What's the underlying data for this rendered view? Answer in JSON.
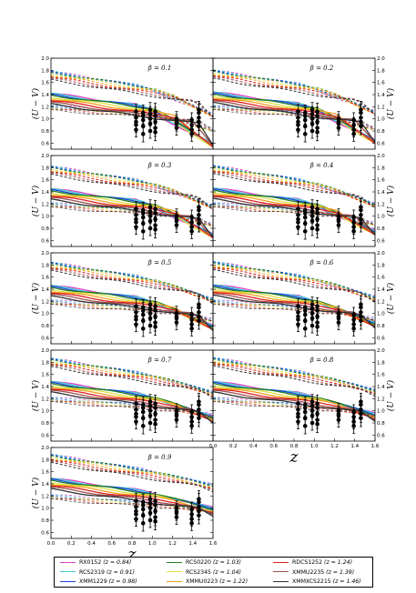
{
  "colors": {
    "RX0152": "#e040c8",
    "RCS2319": "#40d0d0",
    "XMM1229": "#2040e0",
    "RCS0220": "#208020",
    "RCS2345": "#e0e040",
    "XMMU0223": "#f0a020",
    "RDCS1252": "#e02020",
    "XMMU2235": "#a05050",
    "XMMXCS2215": "#303030"
  },
  "figure": {
    "x_axis_symbol": "z",
    "y_axis_label": "(U − V)"
  },
  "legend": {
    "items": [
      {
        "name": "RX0152",
        "z": "(z = 0.84)",
        "color": "#e040c8"
      },
      {
        "name": "RCS0220",
        "z": "(z = 1.03)",
        "color": "#208020"
      },
      {
        "name": "RDCS1252",
        "z": "(z = 1.24)",
        "color": "#e02020"
      },
      {
        "name": "RCS2319",
        "z": "(z = 0.91)",
        "color": "#40d0d0"
      },
      {
        "name": "RCS2345",
        "z": "(z = 1.04)",
        "color": "#e0e040"
      },
      {
        "name": "XMMU2235",
        "z": "(z = 1.39)",
        "color": "#a05050"
      },
      {
        "name": "XMM1229",
        "z": "(z = 0.98)",
        "color": "#2040e0"
      },
      {
        "name": "XMMU0223",
        "z": "(z = 1.22)",
        "color": "#f0a020"
      },
      {
        "name": "XMMXCS2215",
        "z": "(z = 1.46)",
        "color": "#303030"
      }
    ]
  },
  "chart_data": [
    {
      "type": "line",
      "panel_label": "β = 0.1",
      "xlim": [
        0,
        1.6
      ],
      "ylim": [
        0.5,
        2.0
      ],
      "xticks": [
        "0.0",
        "0.2",
        "0.4",
        "0.6",
        "0.8",
        "1.0",
        "1.2",
        "1.4",
        "1.6"
      ],
      "yticks": [
        "0.6",
        "0.8",
        "1.0",
        "1.2",
        "1.4",
        "1.6",
        "1.8",
        "2.0"
      ],
      "x_tick_labels_shown": false,
      "y_ticks_side": "left",
      "solid_start": 1.42,
      "dashed_start": 1.78,
      "drop": 0.55,
      "observations": [
        {
          "x": 0.84,
          "y": [
            1.12,
            0.95,
            0.82,
            1.02,
            0.9
          ],
          "err": 0.12
        },
        {
          "x": 0.91,
          "y": [
            1.05,
            0.88,
            0.75,
            0.98,
            1.1
          ],
          "err": 0.13
        },
        {
          "x": 0.98,
          "y": [
            1.08,
            0.92,
            1.0,
            0.8,
            1.15
          ],
          "err": 0.12
        },
        {
          "x": 1.03,
          "y": [
            0.95,
            1.05,
            0.85,
            1.12,
            0.78
          ],
          "err": 0.14
        },
        {
          "x": 1.24,
          "y": [
            0.92,
            1.0,
            0.85,
            0.95
          ],
          "err": 0.12
        },
        {
          "x": 1.39,
          "y": [
            0.9,
            0.82,
            0.98,
            0.75
          ],
          "err": 0.12
        },
        {
          "x": 1.46,
          "y": [
            1.1,
            0.95,
            1.02,
            0.88,
            1.15
          ],
          "err": 0.14
        }
      ]
    },
    {
      "type": "line",
      "panel_label": "β = 0.2",
      "xlim": [
        0,
        1.6
      ],
      "ylim": [
        0.5,
        2.0
      ],
      "xticks": [
        "0.0",
        "0.2",
        "0.4",
        "0.6",
        "0.8",
        "1.0",
        "1.2",
        "1.4",
        "1.6"
      ],
      "yticks": [
        "0.6",
        "0.8",
        "1.0",
        "1.2",
        "1.4",
        "1.6",
        "1.8",
        "2.0"
      ],
      "x_tick_labels_shown": false,
      "y_ticks_side": "right",
      "solid_start": 1.44,
      "dashed_start": 1.8,
      "drop": 0.5,
      "observations": [
        {
          "x": 0.84,
          "y": [
            1.12,
            0.95,
            0.82,
            1.02,
            0.9
          ],
          "err": 0.12
        },
        {
          "x": 0.91,
          "y": [
            1.05,
            0.88,
            0.75,
            0.98,
            1.1
          ],
          "err": 0.13
        },
        {
          "x": 0.98,
          "y": [
            1.08,
            0.92,
            1.0,
            0.8,
            1.15
          ],
          "err": 0.12
        },
        {
          "x": 1.03,
          "y": [
            0.95,
            1.05,
            0.85,
            1.12,
            0.78
          ],
          "err": 0.14
        },
        {
          "x": 1.24,
          "y": [
            0.92,
            1.0,
            0.85,
            0.95
          ],
          "err": 0.12
        },
        {
          "x": 1.39,
          "y": [
            0.9,
            0.82,
            0.98,
            0.75
          ],
          "err": 0.12
        },
        {
          "x": 1.46,
          "y": [
            1.1,
            0.95,
            1.02,
            0.88,
            1.15
          ],
          "err": 0.14
        }
      ]
    },
    {
      "type": "line",
      "panel_label": "β = 0.3",
      "xlim": [
        0,
        1.6
      ],
      "ylim": [
        0.5,
        2.0
      ],
      "xticks": [
        "0.0",
        "0.2",
        "0.4",
        "0.6",
        "0.8",
        "1.0",
        "1.2",
        "1.4",
        "1.6"
      ],
      "yticks": [
        "0.6",
        "0.8",
        "1.0",
        "1.2",
        "1.4",
        "1.6",
        "1.8",
        "2.0"
      ],
      "x_tick_labels_shown": false,
      "y_ticks_side": "left",
      "solid_start": 1.45,
      "dashed_start": 1.82,
      "drop": 0.45,
      "observations": [
        {
          "x": 0.84,
          "y": [
            1.12,
            0.95,
            0.82,
            1.02,
            0.9
          ],
          "err": 0.12
        },
        {
          "x": 0.91,
          "y": [
            1.05,
            0.88,
            0.75,
            0.98,
            1.1
          ],
          "err": 0.13
        },
        {
          "x": 0.98,
          "y": [
            1.08,
            0.92,
            1.0,
            0.8,
            1.15
          ],
          "err": 0.12
        },
        {
          "x": 1.03,
          "y": [
            0.95,
            1.05,
            0.85,
            1.12,
            0.78
          ],
          "err": 0.14
        },
        {
          "x": 1.24,
          "y": [
            0.92,
            1.0,
            0.85,
            0.95
          ],
          "err": 0.12
        },
        {
          "x": 1.39,
          "y": [
            0.9,
            0.82,
            0.98,
            0.75
          ],
          "err": 0.12
        },
        {
          "x": 1.46,
          "y": [
            1.1,
            0.95,
            1.02,
            0.88,
            1.15
          ],
          "err": 0.14
        }
      ]
    },
    {
      "type": "line",
      "panel_label": "β = 0.4",
      "xlim": [
        0,
        1.6
      ],
      "ylim": [
        0.5,
        2.0
      ],
      "xticks": [
        "0.0",
        "0.2",
        "0.4",
        "0.6",
        "0.8",
        "1.0",
        "1.2",
        "1.4",
        "1.6"
      ],
      "yticks": [
        "0.6",
        "0.8",
        "1.0",
        "1.2",
        "1.4",
        "1.6",
        "1.8",
        "2.0"
      ],
      "x_tick_labels_shown": false,
      "y_ticks_side": "right",
      "solid_start": 1.46,
      "dashed_start": 1.83,
      "drop": 0.4,
      "observations": [
        {
          "x": 0.84,
          "y": [
            1.12,
            0.95,
            0.82,
            1.02,
            0.9
          ],
          "err": 0.12
        },
        {
          "x": 0.91,
          "y": [
            1.05,
            0.88,
            0.75,
            0.98,
            1.1
          ],
          "err": 0.13
        },
        {
          "x": 0.98,
          "y": [
            1.08,
            0.92,
            1.0,
            0.8,
            1.15
          ],
          "err": 0.12
        },
        {
          "x": 1.03,
          "y": [
            0.95,
            1.05,
            0.85,
            1.12,
            0.78
          ],
          "err": 0.14
        },
        {
          "x": 1.24,
          "y": [
            0.92,
            1.0,
            0.85,
            0.95
          ],
          "err": 0.12
        },
        {
          "x": 1.39,
          "y": [
            0.9,
            0.82,
            0.98,
            0.75
          ],
          "err": 0.12
        },
        {
          "x": 1.46,
          "y": [
            1.1,
            0.95,
            1.02,
            0.88,
            1.15
          ],
          "err": 0.14
        }
      ]
    },
    {
      "type": "line",
      "panel_label": "β = 0.5",
      "xlim": [
        0,
        1.6
      ],
      "ylim": [
        0.5,
        2.0
      ],
      "xticks": [
        "0.0",
        "0.2",
        "0.4",
        "0.6",
        "0.8",
        "1.0",
        "1.2",
        "1.4",
        "1.6"
      ],
      "yticks": [
        "0.6",
        "0.8",
        "1.0",
        "1.2",
        "1.4",
        "1.6",
        "1.8",
        "2.0"
      ],
      "x_tick_labels_shown": false,
      "y_ticks_side": "left",
      "solid_start": 1.46,
      "dashed_start": 1.84,
      "drop": 0.35,
      "observations": [
        {
          "x": 0.84,
          "y": [
            1.12,
            0.95,
            0.82,
            1.02,
            0.9
          ],
          "err": 0.12
        },
        {
          "x": 0.91,
          "y": [
            1.05,
            0.88,
            0.75,
            0.98,
            1.1
          ],
          "err": 0.13
        },
        {
          "x": 0.98,
          "y": [
            1.08,
            0.92,
            1.0,
            0.8,
            1.15
          ],
          "err": 0.12
        },
        {
          "x": 1.03,
          "y": [
            0.95,
            1.05,
            0.85,
            1.12,
            0.78
          ],
          "err": 0.14
        },
        {
          "x": 1.24,
          "y": [
            0.92,
            1.0,
            0.85,
            0.95
          ],
          "err": 0.12
        },
        {
          "x": 1.39,
          "y": [
            0.9,
            0.82,
            0.98,
            0.75
          ],
          "err": 0.12
        },
        {
          "x": 1.46,
          "y": [
            1.1,
            0.95,
            1.02,
            0.88,
            1.15
          ],
          "err": 0.14
        }
      ]
    },
    {
      "type": "line",
      "panel_label": "β = 0.6",
      "xlim": [
        0,
        1.6
      ],
      "ylim": [
        0.5,
        2.0
      ],
      "xticks": [
        "0.0",
        "0.2",
        "0.4",
        "0.6",
        "0.8",
        "1.0",
        "1.2",
        "1.4",
        "1.6"
      ],
      "yticks": [
        "0.6",
        "0.8",
        "1.0",
        "1.2",
        "1.4",
        "1.6",
        "1.8",
        "2.0"
      ],
      "x_tick_labels_shown": false,
      "y_ticks_side": "right",
      "solid_start": 1.47,
      "dashed_start": 1.85,
      "drop": 0.3,
      "observations": [
        {
          "x": 0.84,
          "y": [
            1.12,
            0.95,
            0.82,
            1.02,
            0.9
          ],
          "err": 0.12
        },
        {
          "x": 0.91,
          "y": [
            1.05,
            0.88,
            0.75,
            0.98,
            1.1
          ],
          "err": 0.13
        },
        {
          "x": 0.98,
          "y": [
            1.08,
            0.92,
            1.0,
            0.8,
            1.15
          ],
          "err": 0.12
        },
        {
          "x": 1.03,
          "y": [
            0.95,
            1.05,
            0.85,
            1.12,
            0.78
          ],
          "err": 0.14
        },
        {
          "x": 1.24,
          "y": [
            0.92,
            1.0,
            0.85,
            0.95
          ],
          "err": 0.12
        },
        {
          "x": 1.39,
          "y": [
            0.9,
            0.82,
            0.98,
            0.75
          ],
          "err": 0.12
        },
        {
          "x": 1.46,
          "y": [
            1.1,
            0.95,
            1.02,
            0.88,
            1.15
          ],
          "err": 0.14
        }
      ]
    },
    {
      "type": "line",
      "panel_label": "β = 0.7",
      "xlim": [
        0,
        1.6
      ],
      "ylim": [
        0.5,
        2.0
      ],
      "xticks": [
        "0.0",
        "0.2",
        "0.4",
        "0.6",
        "0.8",
        "1.0",
        "1.2",
        "1.4",
        "1.6"
      ],
      "yticks": [
        "0.6",
        "0.8",
        "1.0",
        "1.2",
        "1.4",
        "1.6",
        "1.8",
        "2.0"
      ],
      "x_tick_labels_shown": false,
      "y_ticks_side": "left",
      "solid_start": 1.48,
      "dashed_start": 1.86,
      "drop": 0.25,
      "observations": [
        {
          "x": 0.84,
          "y": [
            1.12,
            0.95,
            0.82,
            1.02,
            0.9
          ],
          "err": 0.12
        },
        {
          "x": 0.91,
          "y": [
            1.05,
            0.88,
            0.75,
            0.98,
            1.1
          ],
          "err": 0.13
        },
        {
          "x": 0.98,
          "y": [
            1.08,
            0.92,
            1.0,
            0.8,
            1.15
          ],
          "err": 0.12
        },
        {
          "x": 1.03,
          "y": [
            0.95,
            1.05,
            0.85,
            1.12,
            0.78
          ],
          "err": 0.14
        },
        {
          "x": 1.24,
          "y": [
            0.92,
            1.0,
            0.85,
            0.95
          ],
          "err": 0.12
        },
        {
          "x": 1.39,
          "y": [
            0.9,
            0.82,
            0.98,
            0.75
          ],
          "err": 0.12
        },
        {
          "x": 1.46,
          "y": [
            1.1,
            0.95,
            1.02,
            0.88,
            1.15
          ],
          "err": 0.14
        }
      ]
    },
    {
      "type": "line",
      "panel_label": "β = 0.8",
      "xlim": [
        0,
        1.6
      ],
      "ylim": [
        0.5,
        2.0
      ],
      "xticks": [
        "0.0",
        "0.2",
        "0.4",
        "0.6",
        "0.8",
        "1.0",
        "1.2",
        "1.4",
        "1.6"
      ],
      "yticks": [
        "0.6",
        "0.8",
        "1.0",
        "1.2",
        "1.4",
        "1.6",
        "1.8",
        "2.0"
      ],
      "x_tick_labels_shown": true,
      "y_ticks_side": "right",
      "solid_start": 1.48,
      "dashed_start": 1.87,
      "drop": 0.2,
      "observations": [
        {
          "x": 0.84,
          "y": [
            1.12,
            0.95,
            0.82,
            1.02,
            0.9
          ],
          "err": 0.12
        },
        {
          "x": 0.91,
          "y": [
            1.05,
            0.88,
            0.75,
            0.98,
            1.1
          ],
          "err": 0.13
        },
        {
          "x": 0.98,
          "y": [
            1.08,
            0.92,
            1.0,
            0.8,
            1.15
          ],
          "err": 0.12
        },
        {
          "x": 1.03,
          "y": [
            0.95,
            1.05,
            0.85,
            1.12,
            0.78
          ],
          "err": 0.14
        },
        {
          "x": 1.24,
          "y": [
            0.92,
            1.0,
            0.85,
            0.95
          ],
          "err": 0.12
        },
        {
          "x": 1.39,
          "y": [
            0.9,
            0.82,
            0.98,
            0.75
          ],
          "err": 0.12
        },
        {
          "x": 1.46,
          "y": [
            1.1,
            0.95,
            1.02,
            0.88,
            1.15
          ],
          "err": 0.14
        }
      ]
    },
    {
      "type": "line",
      "panel_label": "β = 0.9",
      "xlim": [
        0,
        1.6
      ],
      "ylim": [
        0.5,
        2.0
      ],
      "xticks": [
        "0.0",
        "0.2",
        "0.4",
        "0.6",
        "0.8",
        "1.0",
        "1.2",
        "1.4",
        "1.6"
      ],
      "yticks": [
        "0.6",
        "0.8",
        "1.0",
        "1.2",
        "1.4",
        "1.6",
        "1.8",
        "2.0"
      ],
      "x_tick_labels_shown": true,
      "y_ticks_side": "left",
      "solid_start": 1.49,
      "dashed_start": 1.88,
      "drop": 0.15,
      "observations": [
        {
          "x": 0.84,
          "y": [
            1.12,
            0.95,
            0.82,
            1.02,
            0.9
          ],
          "err": 0.12
        },
        {
          "x": 0.91,
          "y": [
            1.05,
            0.88,
            0.75,
            0.98,
            1.1
          ],
          "err": 0.13
        },
        {
          "x": 0.98,
          "y": [
            1.08,
            0.92,
            1.0,
            0.8,
            1.15
          ],
          "err": 0.12
        },
        {
          "x": 1.03,
          "y": [
            0.95,
            1.05,
            0.85,
            1.12,
            0.78
          ],
          "err": 0.14
        },
        {
          "x": 1.24,
          "y": [
            0.92,
            1.0,
            0.85,
            0.95
          ],
          "err": 0.12
        },
        {
          "x": 1.39,
          "y": [
            0.9,
            0.82,
            0.98,
            0.75
          ],
          "err": 0.12
        },
        {
          "x": 1.46,
          "y": [
            1.1,
            0.95,
            1.02,
            0.88,
            1.15
          ],
          "err": 0.14
        }
      ]
    }
  ]
}
